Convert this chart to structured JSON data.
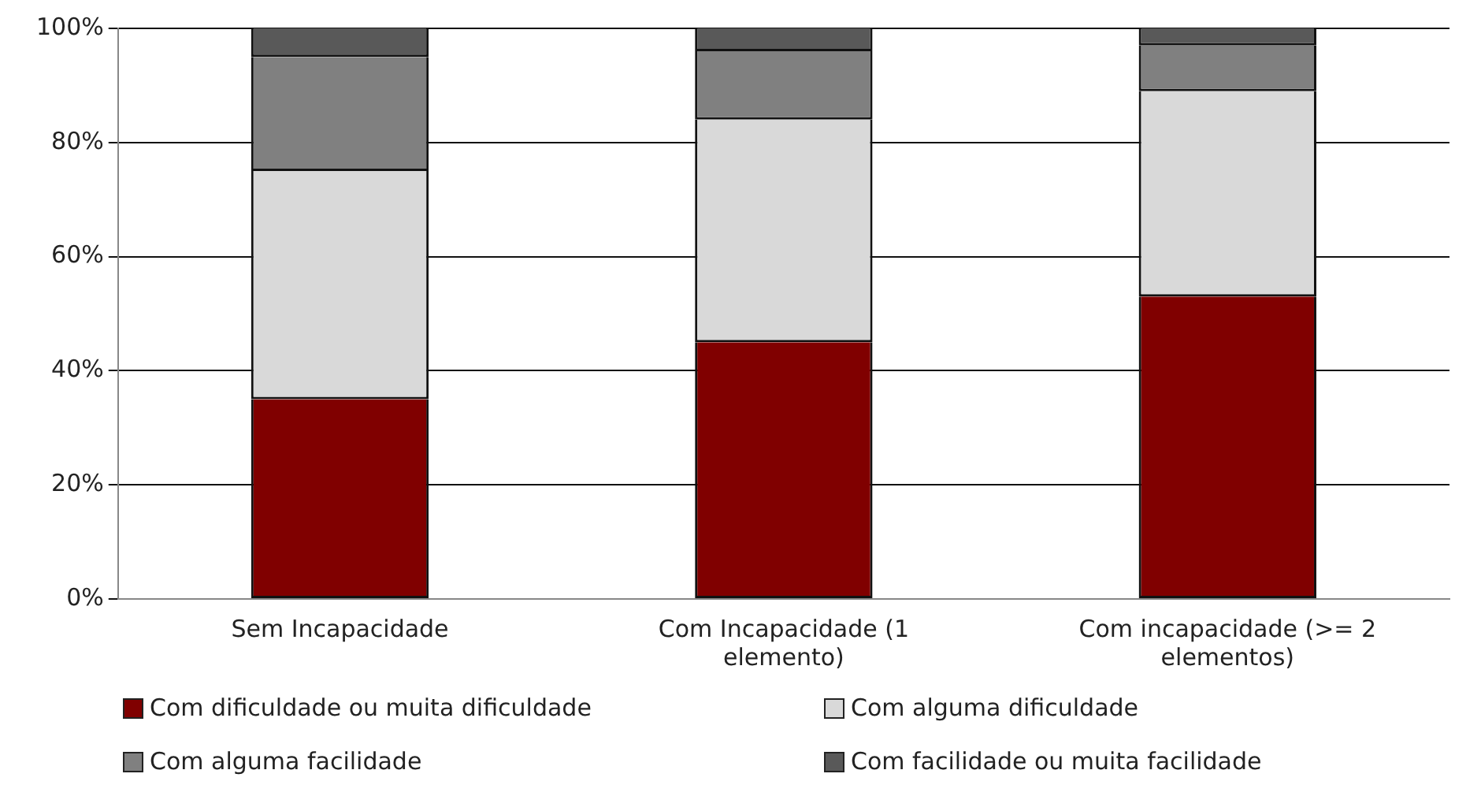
{
  "chart_data": {
    "type": "bar",
    "stacked": true,
    "categories": [
      "Sem Incapacidade",
      "Com Incapacidade (1 elemento)",
      "Com incapacidade (>= 2 elementos)"
    ],
    "series": [
      {
        "name": "Com dificuldade ou muita dificuldade",
        "color": "#800000",
        "values": [
          35,
          45,
          53
        ]
      },
      {
        "name": "Com alguma dificuldade",
        "color": "#d9d9d9",
        "values": [
          40,
          39,
          36
        ]
      },
      {
        "name": "Com alguma facilidade",
        "color": "#808080",
        "values": [
          20,
          12,
          8
        ]
      },
      {
        "name": "Com facilidade ou muita facilidade",
        "color": "#595959",
        "values": [
          5,
          4,
          3
        ]
      }
    ],
    "ylim": [
      0,
      100
    ],
    "yticks": [
      {
        "value": 0,
        "label": "0%"
      },
      {
        "value": 20,
        "label": "20%"
      },
      {
        "value": 40,
        "label": "40%"
      },
      {
        "value": 60,
        "label": "60%"
      },
      {
        "value": 80,
        "label": "80%"
      },
      {
        "value": 100,
        "label": "100%"
      }
    ],
    "grid": "y",
    "legend": "bottom"
  }
}
